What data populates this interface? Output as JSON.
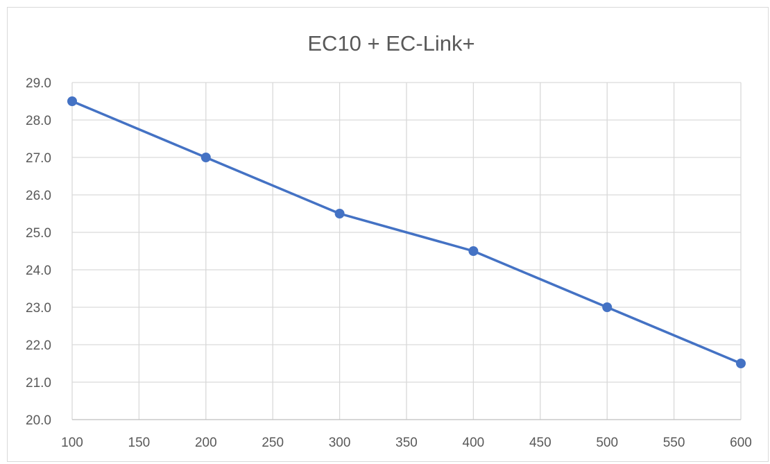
{
  "chart_data": {
    "type": "line",
    "title": "EC10 + EC-Link+",
    "xlabel": "",
    "ylabel": "",
    "x": [
      100,
      200,
      300,
      400,
      500,
      600
    ],
    "series": [
      {
        "values": [
          28.5,
          27.0,
          25.5,
          24.5,
          23.0,
          21.5
        ],
        "color": "#4472c4"
      }
    ],
    "xlim": [
      100,
      600
    ],
    "ylim": [
      20.0,
      29.0
    ],
    "x_ticks": [
      "100",
      "150",
      "200",
      "250",
      "300",
      "350",
      "400",
      "450",
      "500",
      "550",
      "600"
    ],
    "y_ticks": [
      "20.0",
      "21.0",
      "22.0",
      "23.0",
      "24.0",
      "25.0",
      "26.0",
      "27.0",
      "28.0",
      "29.0"
    ],
    "grid": true,
    "legend": "none",
    "marker": "circle"
  }
}
